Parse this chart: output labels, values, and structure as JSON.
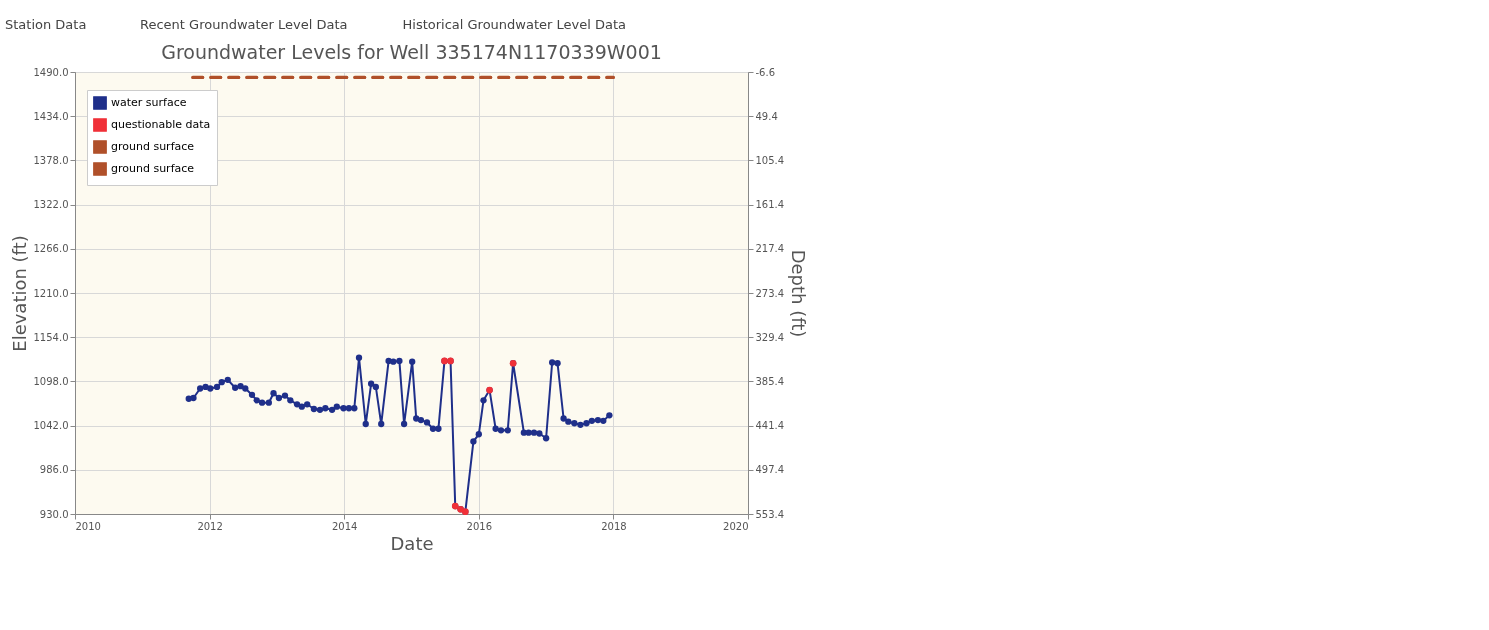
{
  "chart_data": {
    "type": "line",
    "title": "Groundwater Levels for Well 335174N1170339W001",
    "xlabel": "Date",
    "ylabel": "Elevation (ft)",
    "y2label": "Depth (ft)",
    "annotations": [
      "Station Data",
      "Recent Groundwater Level Data",
      "Historical Groundwater Level Data"
    ],
    "xlim": [
      2010,
      2020
    ],
    "xticks": [
      2010,
      2012,
      2014,
      2016,
      2018,
      2020
    ],
    "ylim": [
      930,
      1490
    ],
    "yticks": [
      {
        "value": 930,
        "label": "930.0"
      },
      {
        "value": 986,
        "label": "986.0"
      },
      {
        "value": 1042,
        "label": "1042.0"
      },
      {
        "value": 1098,
        "label": "1098.0"
      },
      {
        "value": 1154,
        "label": "1154.0"
      },
      {
        "value": 1210,
        "label": "1210.0"
      },
      {
        "value": 1266,
        "label": "1266.0"
      },
      {
        "value": 1322,
        "label": "1322.0"
      },
      {
        "value": 1378,
        "label": "1378.0"
      },
      {
        "value": 1434,
        "label": "1434.0"
      },
      {
        "value": 1490,
        "label": "1490.0"
      }
    ],
    "y2lim": [
      553.4,
      -6.6
    ],
    "y2ticks": [
      {
        "value": -6.6,
        "label": "-6.6"
      },
      {
        "value": 49.4,
        "label": "49.4"
      },
      {
        "value": 105.4,
        "label": "105.4"
      },
      {
        "value": 161.4,
        "label": "161.4"
      },
      {
        "value": 217.4,
        "label": "217.4"
      },
      {
        "value": 273.4,
        "label": "273.4"
      },
      {
        "value": 329.4,
        "label": "329.4"
      },
      {
        "value": 385.4,
        "label": "385.4"
      },
      {
        "value": 441.4,
        "label": "441.4"
      },
      {
        "value": 497.4,
        "label": "497.4"
      },
      {
        "value": 553.4,
        "label": "553.4"
      }
    ],
    "grid": true,
    "legend": "top left",
    "marker": "circle",
    "series": [
      {
        "name": "water surface",
        "color": "#1f2f8a",
        "line_style": "solid",
        "x": [
          2011.69,
          2011.76,
          2011.86,
          2011.94,
          2012.01,
          2012.11,
          2012.18,
          2012.27,
          2012.38,
          2012.46,
          2012.53,
          2012.63,
          2012.7,
          2012.78,
          2012.88,
          2012.95,
          2013.03,
          2013.12,
          2013.2,
          2013.3,
          2013.37,
          2013.45,
          2013.55,
          2013.64,
          2013.72,
          2013.82,
          2013.89,
          2013.99,
          2014.07,
          2014.15,
          2014.22,
          2014.32,
          2014.4,
          2014.47,
          2014.55,
          2014.66,
          2014.73,
          2014.82,
          2014.89,
          2015.01,
          2015.07,
          2015.14,
          2015.23,
          2015.32,
          2015.4,
          2015.49,
          2015.58,
          2015.65,
          2015.73,
          2015.8,
          2015.92,
          2016.0,
          2016.07,
          2016.16,
          2016.25,
          2016.33,
          2016.43,
          2016.51,
          2016.67,
          2016.74,
          2016.82,
          2016.9,
          2017.0,
          2017.09,
          2017.17,
          2017.26,
          2017.33,
          2017.42,
          2017.51,
          2017.6,
          2017.68,
          2017.77,
          2017.85,
          2017.94
        ],
        "values": [
          1076,
          1077,
          1089,
          1091,
          1089,
          1091,
          1097,
          1100,
          1090,
          1092,
          1089,
          1081,
          1074,
          1071,
          1071,
          1083,
          1077,
          1080,
          1074,
          1069,
          1066,
          1069,
          1063,
          1062,
          1064,
          1062,
          1066,
          1064,
          1064,
          1064,
          1128,
          1044,
          1095,
          1091,
          1044,
          1124,
          1123,
          1124,
          1044,
          1123,
          1051,
          1049,
          1046,
          1038,
          1038,
          1124,
          1124,
          940,
          936,
          933,
          1022,
          1031,
          1074,
          1087,
          1038,
          1036,
          1036,
          1121,
          1033,
          1033,
          1033,
          1032,
          1026,
          1122,
          1121,
          1051,
          1047,
          1045,
          1043,
          1045,
          1048,
          1049,
          1048,
          1055
        ]
      },
      {
        "name": "questionable data",
        "color": "#f03038",
        "type": "scatter",
        "x": [
          2015.49,
          2015.58,
          2015.65,
          2015.73,
          2015.8,
          2016.16,
          2016.51
        ],
        "values": [
          1124,
          1124,
          940,
          936,
          933,
          1087,
          1121
        ]
      },
      {
        "name": "ground surface",
        "color": "#b0502a",
        "type": "line",
        "marker": "none",
        "line_style": "dashed",
        "x": [
          2011.75,
          2018.0
        ],
        "values": [
          1483,
          1483
        ]
      },
      {
        "name": "ground surface",
        "color": "#b0502a",
        "type": "line",
        "marker": "none",
        "line_style": "dashed",
        "axis": "y2",
        "x": [
          2011.75,
          2018.0
        ],
        "values": [
          0,
          0
        ]
      }
    ]
  }
}
